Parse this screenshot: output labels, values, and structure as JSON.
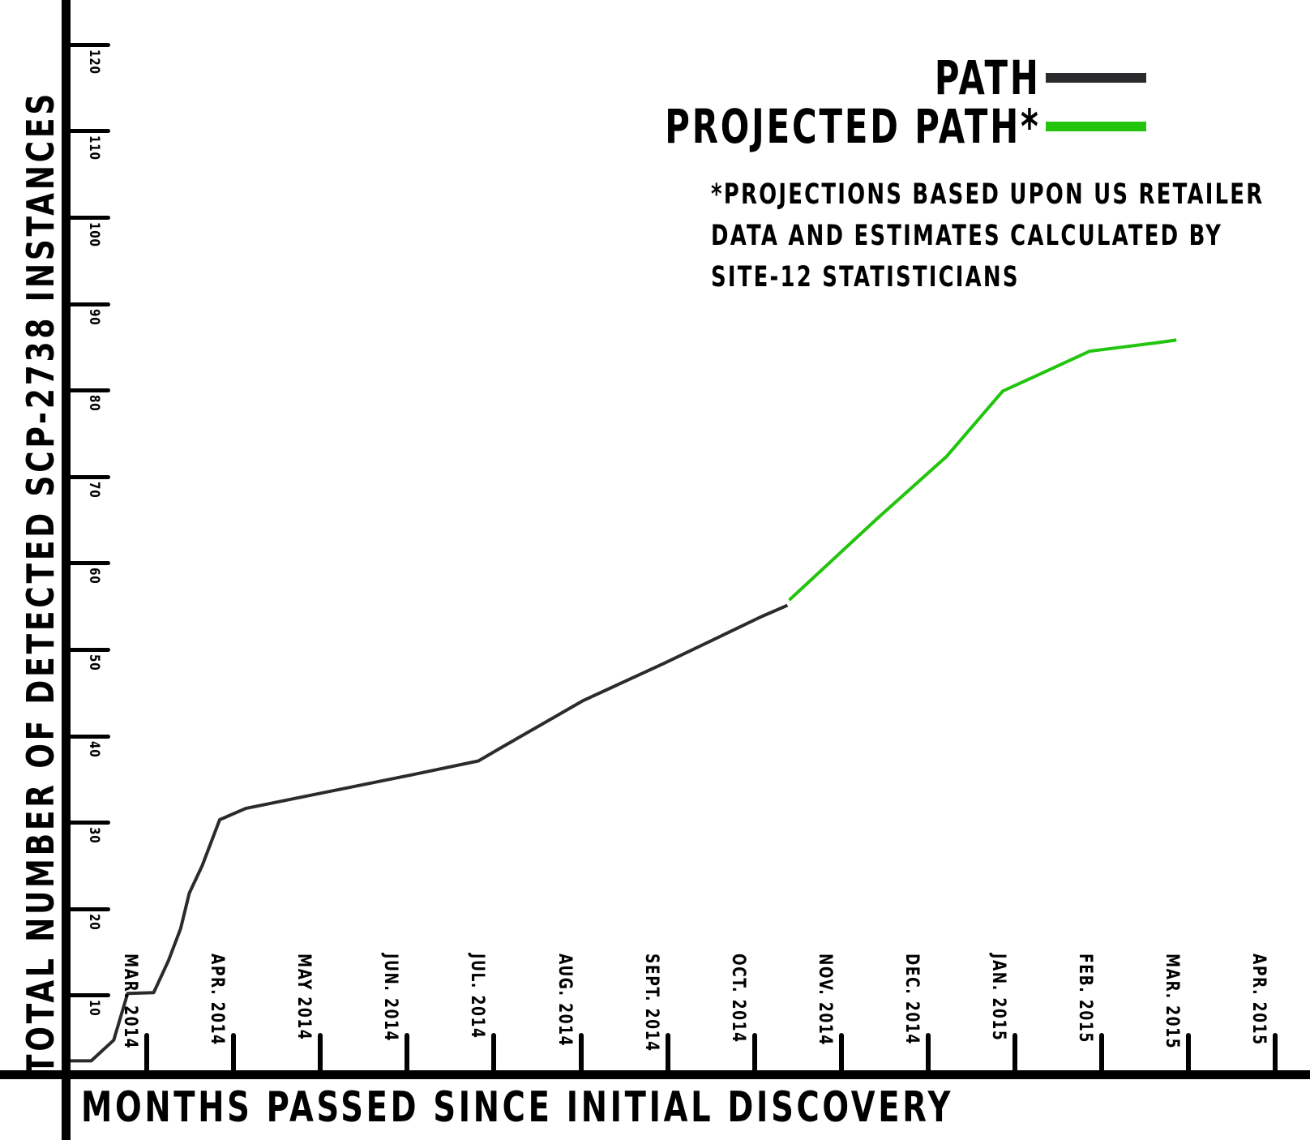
{
  "chart_data": {
    "type": "line",
    "title": "",
    "xlabel": "MONTHS PASSED SINCE INITIAL DISCOVERY",
    "ylabel": "TOTAL NUMBER OF DETECTED SCP-2738 INSTANCES",
    "ylim": [
      0,
      120
    ],
    "y_ticks": [
      10,
      20,
      30,
      40,
      50,
      60,
      70,
      80,
      90,
      100,
      110,
      120
    ],
    "categories": [
      "MAR. 2014",
      "APR. 2014",
      "MAY 2014",
      "JUN. 2014",
      "JUL. 2014",
      "AUG. 2014",
      "SEPT. 2014",
      "OCT. 2014",
      "NOV. 2014",
      "DEC. 2014",
      "JAN. 2015",
      "FEB. 2015",
      "MAR. 2015",
      "APR. 2015"
    ],
    "grid": false,
    "legend_position": "top-right",
    "series": [
      {
        "name": "PATH",
        "color": "#2b2b2e",
        "points_month_index_value": [
          [
            -0.93,
            2.4
          ],
          [
            -0.64,
            2.4
          ],
          [
            -0.38,
            4.8
          ],
          [
            -0.22,
            10.2
          ],
          [
            0.08,
            10.3
          ],
          [
            0.25,
            14.0
          ],
          [
            0.39,
            17.7
          ],
          [
            0.49,
            21.8
          ],
          [
            0.64,
            25.0
          ],
          [
            0.84,
            30.3
          ],
          [
            1.14,
            31.6
          ],
          [
            1.87,
            33.1
          ],
          [
            3.01,
            35.4
          ],
          [
            3.82,
            37.1
          ],
          [
            4.11,
            38.8
          ],
          [
            5.03,
            44.1
          ],
          [
            5.96,
            48.4
          ],
          [
            7.08,
            53.8
          ],
          [
            7.38,
            55.1
          ]
        ]
      },
      {
        "name": "PROJECTED PATH*",
        "color": "#22c40e",
        "points_month_index_value": [
          [
            7.4,
            55.7
          ],
          [
            8.43,
            65.3
          ],
          [
            9.21,
            72.3
          ],
          [
            9.86,
            79.9
          ],
          [
            10.08,
            80.9
          ],
          [
            10.86,
            84.5
          ],
          [
            11.64,
            85.5
          ],
          [
            11.86,
            85.8
          ]
        ]
      }
    ],
    "annotations": [
      "*PROJECTIONS BASED UPON US RETAILER DATA AND ESTIMATES CALCULATED BY SITE-12 STATISTICIANS"
    ]
  },
  "axes": {
    "ylabel": "TOTAL NUMBER OF DETECTED SCP-2738 INSTANCES",
    "xlabel": "MONTHS PASSED SINCE INITIAL DISCOVERY",
    "y_ticks": [
      "10",
      "20",
      "30",
      "40",
      "50",
      "60",
      "70",
      "80",
      "90",
      "100",
      "110",
      "120"
    ],
    "x_ticks": [
      "MAR. 2014",
      "APR. 2014",
      "MAY 2014",
      "JUN. 2014",
      "JUL. 2014",
      "AUG. 2014",
      "SEPT. 2014",
      "OCT. 2014",
      "NOV. 2014",
      "DEC. 2014",
      "JAN. 2015",
      "FEB. 2015",
      "MAR. 2015",
      "APR. 2015"
    ]
  },
  "legend": {
    "items": [
      {
        "label": "PATH",
        "color": "#2b2b2e"
      },
      {
        "label": "PROJECTED PATH*",
        "color": "#22c40e"
      }
    ]
  },
  "note": {
    "lines": [
      "*PROJECTIONS BASED UPON US RETAILER",
      "DATA AND ESTIMATES CALCULATED BY",
      "SITE-12 STATISTICIANS"
    ]
  }
}
